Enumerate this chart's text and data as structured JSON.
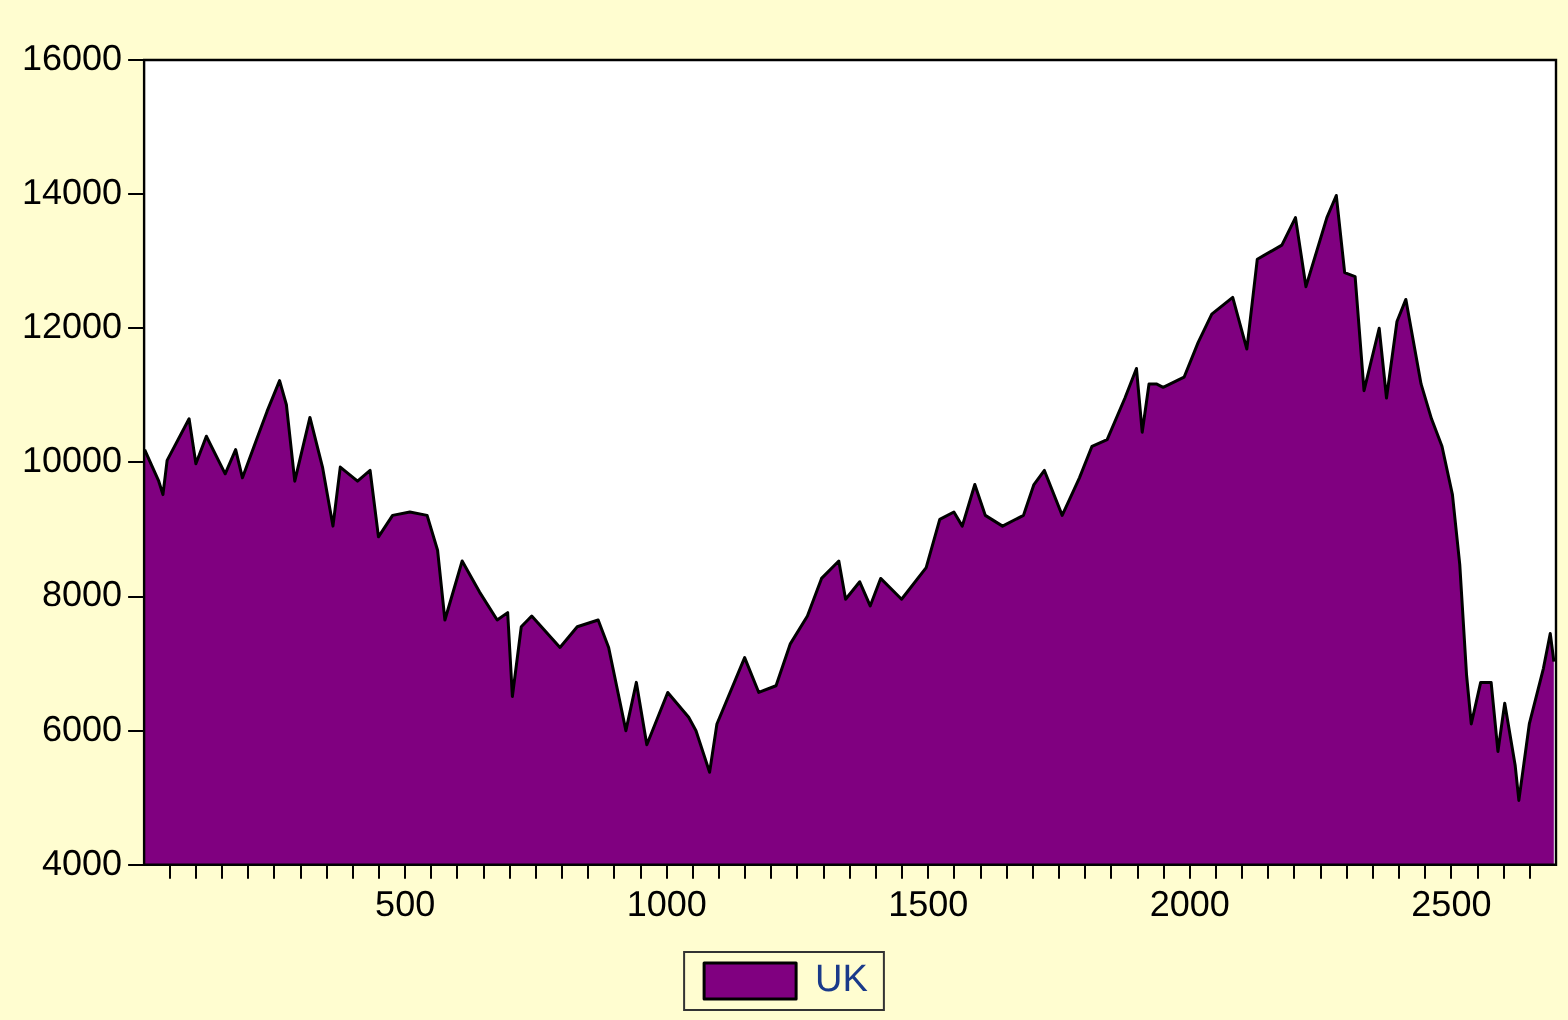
{
  "chart_data": {
    "type": "area",
    "legend": "bottom",
    "grid": false,
    "xlim": [
      1,
      2700
    ],
    "xticks": [
      {
        "value": 50,
        "label": null
      },
      {
        "value": 100,
        "label": null
      },
      {
        "value": 150,
        "label": null
      },
      {
        "value": 200,
        "label": null
      },
      {
        "value": 250,
        "label": null
      },
      {
        "value": 300,
        "label": null
      },
      {
        "value": 350,
        "label": null
      },
      {
        "value": 400,
        "label": null
      },
      {
        "value": 450,
        "label": null
      },
      500,
      {
        "value": 550,
        "label": null
      },
      {
        "value": 600,
        "label": null
      },
      {
        "value": 650,
        "label": null
      },
      {
        "value": 700,
        "label": null
      },
      {
        "value": 750,
        "label": null
      },
      {
        "value": 800,
        "label": null
      },
      {
        "value": 850,
        "label": null
      },
      {
        "value": 900,
        "label": null
      },
      {
        "value": 950,
        "label": null
      },
      1000,
      {
        "value": 1050,
        "label": null
      },
      {
        "value": 1100,
        "label": null
      },
      {
        "value": 1150,
        "label": null
      },
      {
        "value": 1200,
        "label": null
      },
      {
        "value": 1250,
        "label": null
      },
      {
        "value": 1300,
        "label": null
      },
      {
        "value": 1350,
        "label": null
      },
      {
        "value": 1400,
        "label": null
      },
      {
        "value": 1450,
        "label": null
      },
      1500,
      {
        "value": 1550,
        "label": null
      },
      {
        "value": 1600,
        "label": null
      },
      {
        "value": 1650,
        "label": null
      },
      {
        "value": 1700,
        "label": null
      },
      {
        "value": 1750,
        "label": null
      },
      {
        "value": 1800,
        "label": null
      },
      {
        "value": 1850,
        "label": null
      },
      {
        "value": 1900,
        "label": null
      },
      {
        "value": 1950,
        "label": null
      },
      2000,
      {
        "value": 2050,
        "label": null
      },
      {
        "value": 2100,
        "label": null
      },
      {
        "value": 2150,
        "label": null
      },
      {
        "value": 2200,
        "label": null
      },
      {
        "value": 2250,
        "label": null
      },
      {
        "value": 2300,
        "label": null
      },
      {
        "value": 2350,
        "label": null
      },
      {
        "value": 2400,
        "label": null
      },
      {
        "value": 2450,
        "label": null
      },
      2500,
      {
        "value": 2550,
        "label": null
      },
      {
        "value": 2600,
        "label": null
      },
      {
        "value": 2650,
        "label": null
      }
    ],
    "ylim": [
      4000,
      16000
    ],
    "yticks": [
      4000,
      6000,
      8000,
      10000,
      12000,
      14000,
      16000
    ],
    "series": [
      {
        "name": "UK",
        "color": "#800080",
        "x": [
          2,
          29,
          37,
          45,
          87,
          100,
          120,
          156,
          176,
          189,
          216,
          236,
          260,
          273,
          289,
          318,
          342,
          362,
          376,
          409,
          433,
          449,
          476,
          509,
          542,
          562,
          576,
          609,
          642,
          676,
          696,
          705,
          722,
          742,
          796,
          829,
          869,
          889,
          922,
          942,
          962,
          1002,
          1042,
          1056,
          1082,
          1096,
          1149,
          1176,
          1209,
          1236,
          1269,
          1296,
          1329,
          1342,
          1369,
          1389,
          1409,
          1449,
          1496,
          1522,
          1549,
          1565,
          1589,
          1609,
          1642,
          1682,
          1702,
          1722,
          1756,
          1789,
          1813,
          1842,
          1876,
          1898,
          1909,
          1922,
          1936,
          1949,
          1989,
          2016,
          2042,
          2082,
          2109,
          2129,
          2176,
          2202,
          2222,
          2262,
          2280,
          2296,
          2316,
          2333,
          2362,
          2376,
          2396,
          2413,
          2442,
          2462,
          2482,
          2502,
          2516,
          2529,
          2538,
          2556,
          2576,
          2589,
          2602,
          2622,
          2629,
          2649,
          2676,
          2689,
          2696
        ],
        "values": [
          10190,
          9720,
          9520,
          10030,
          10650,
          9980,
          10390,
          9830,
          10190,
          9770,
          10340,
          10760,
          11220,
          10860,
          9720,
          10670,
          9930,
          9050,
          9930,
          9720,
          9880,
          8890,
          9210,
          9260,
          9210,
          8690,
          7650,
          8530,
          8070,
          7650,
          7760,
          6510,
          7550,
          7710,
          7240,
          7550,
          7650,
          7240,
          6000,
          6720,
          5790,
          6570,
          6200,
          6000,
          5380,
          6100,
          7090,
          6570,
          6670,
          7290,
          7710,
          8270,
          8530,
          7960,
          8220,
          7860,
          8270,
          7960,
          8430,
          9150,
          9260,
          9050,
          9670,
          9210,
          9050,
          9210,
          9670,
          9880,
          9210,
          9770,
          10240,
          10340,
          10960,
          11400,
          10450,
          11170,
          11170,
          11120,
          11270,
          11790,
          12210,
          12460,
          11690,
          13030,
          13240,
          13650,
          12620,
          13650,
          13980,
          12830,
          12770,
          11070,
          12000,
          10960,
          12100,
          12430,
          11170,
          10650,
          10240,
          9520,
          8480,
          6830,
          6100,
          6720,
          6720,
          5690,
          6410,
          5480,
          4960,
          6100,
          6930,
          7450,
          7030
        ]
      }
    ]
  }
}
